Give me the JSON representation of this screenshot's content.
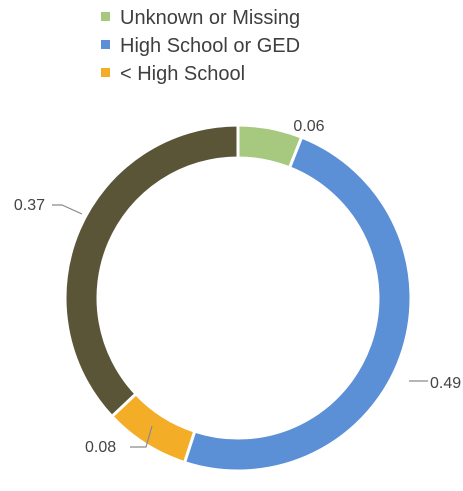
{
  "chart_data": {
    "type": "pie",
    "variant": "donut",
    "title": "",
    "legend": {
      "placement": "top-left",
      "entries": [
        {
          "label": "Unknown or Missing",
          "color": "#a6c97f"
        },
        {
          "label": "High School or GED",
          "color": "#5b8fd6"
        },
        {
          "label": "< High School",
          "color": "#f4ad26"
        }
      ]
    },
    "slices": [
      {
        "label": "Unknown or Missing",
        "value": 0.06,
        "display": "0.06",
        "color": "#a6c97f"
      },
      {
        "label": "High School or GED",
        "value": 0.49,
        "display": "0.49",
        "color": "#5b8fd6"
      },
      {
        "label": "< High School",
        "value": 0.08,
        "display": "0.08",
        "color": "#f4ad26"
      },
      {
        "label": "",
        "value": 0.37,
        "display": "0.37",
        "color": "#5a5537"
      }
    ]
  }
}
